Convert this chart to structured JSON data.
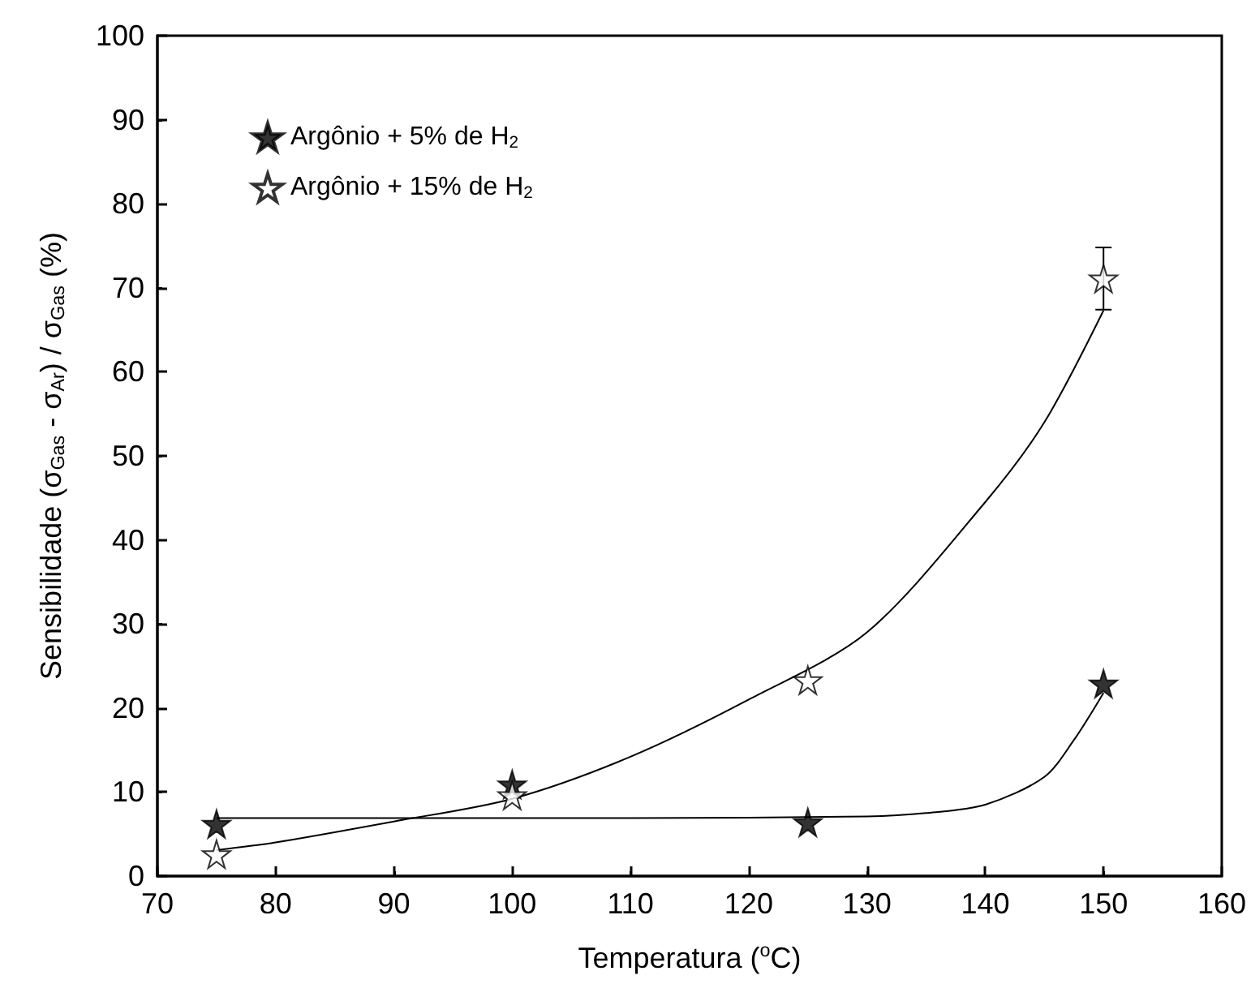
{
  "chart_data": {
    "type": "scatter",
    "xlabel": "Temperatura ($^{o}$C)",
    "ylabel": "Sensibilidade (σ$_{Gas}$ - σ$_{Ar}$) / σ$_{Gas}$ (%)",
    "x": [
      75,
      100,
      125,
      150
    ],
    "series": [
      {
        "name": "Argônio + 5% de H$_{2}$",
        "color": "#000000",
        "values": [
          6.2,
          10.9,
          6.4,
          22.9
        ]
      },
      {
        "name": "Argônio + 15% de H$_{2}$",
        "color": "#ffffff",
        "values": [
          2.6,
          9.6,
          23.3,
          71.1
        ],
        "errors": [
          null,
          null,
          null,
          [
            67.4,
            74.8
          ]
        ]
      },
      {
        "type": "line",
        "color": "#000000",
        "marker": "none",
        "x": [
          75,
          90,
          110,
          130,
          135,
          140,
          145,
          147.5,
          150
        ],
        "values": [
          6.9,
          6.9,
          6.9,
          7.1,
          7.5,
          8.5,
          11.8,
          16.2,
          21.8
        ]
      },
      {
        "type": "line",
        "color": "#000000",
        "marker": "none",
        "x": [
          75,
          80,
          90,
          100,
          110,
          120,
          130,
          140,
          145,
          150
        ],
        "values": [
          3.1,
          4.0,
          6.5,
          9.2,
          14.2,
          21,
          29,
          44.5,
          54,
          67.3
        ]
      }
    ],
    "xlim": [
      70,
      160
    ],
    "xticks": [
      70,
      80,
      90,
      100,
      110,
      120,
      130,
      140,
      150,
      160
    ],
    "ylim": [
      0,
      100
    ],
    "yticks": [
      0,
      10,
      20,
      30,
      40,
      50,
      60,
      70,
      80,
      90,
      100
    ],
    "marker": "star",
    "grid": false,
    "legend": "top left"
  }
}
